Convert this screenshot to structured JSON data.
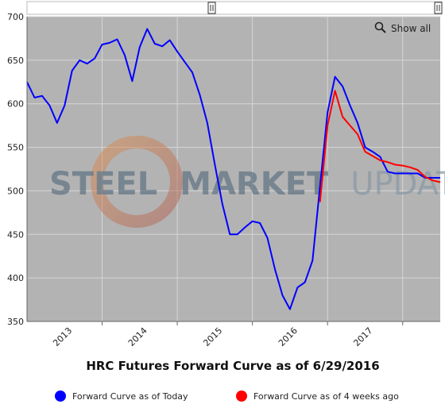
{
  "chart_data": {
    "type": "line",
    "title": "HRC Futures Forward Curve as of 6/29/2016",
    "watermark": {
      "word1": "STEEL",
      "word2": "MARKET",
      "word3": "UPDATE"
    },
    "show_all_label": "Show all",
    "ylim": [
      350,
      700
    ],
    "y_ticks": [
      350,
      400,
      450,
      500,
      550,
      600,
      650,
      700
    ],
    "x_range": [
      2012.0,
      2017.5
    ],
    "x_ticks": [
      {
        "label": "2013",
        "value": 2012.5
      },
      {
        "label": "2014",
        "value": 2013.5
      },
      {
        "label": "2015",
        "value": 2014.5
      },
      {
        "label": "2016",
        "value": 2015.5
      },
      {
        "label": "2017",
        "value": 2016.5
      }
    ],
    "year_boundaries": [
      2013,
      2014,
      2015,
      2016,
      2017
    ],
    "grid": true,
    "legend_position": "bottom",
    "series": [
      {
        "name": "Forward Curve as of Today",
        "color": "#0000ff",
        "points": [
          [
            2012.0,
            625
          ],
          [
            2012.1,
            607
          ],
          [
            2012.2,
            609
          ],
          [
            2012.3,
            598
          ],
          [
            2012.4,
            578
          ],
          [
            2012.5,
            598
          ],
          [
            2012.6,
            638
          ],
          [
            2012.7,
            650
          ],
          [
            2012.8,
            646
          ],
          [
            2012.9,
            652
          ],
          [
            2013.0,
            668
          ],
          [
            2013.1,
            670
          ],
          [
            2013.2,
            674
          ],
          [
            2013.3,
            656
          ],
          [
            2013.4,
            626
          ],
          [
            2013.5,
            665
          ],
          [
            2013.6,
            686
          ],
          [
            2013.7,
            669
          ],
          [
            2013.8,
            666
          ],
          [
            2013.9,
            673
          ],
          [
            2014.0,
            660
          ],
          [
            2014.1,
            648
          ],
          [
            2014.2,
            636
          ],
          [
            2014.3,
            610
          ],
          [
            2014.4,
            578
          ],
          [
            2014.5,
            530
          ],
          [
            2014.6,
            485
          ],
          [
            2014.7,
            450
          ],
          [
            2014.8,
            450
          ],
          [
            2014.9,
            458
          ],
          [
            2015.0,
            465
          ],
          [
            2015.1,
            463
          ],
          [
            2015.2,
            446
          ],
          [
            2015.3,
            410
          ],
          [
            2015.4,
            380
          ],
          [
            2015.5,
            364
          ],
          [
            2015.6,
            389
          ],
          [
            2015.7,
            395
          ],
          [
            2015.8,
            420
          ],
          [
            2015.9,
            505
          ],
          [
            2016.0,
            590
          ],
          [
            2016.1,
            631
          ],
          [
            2016.2,
            620
          ],
          [
            2016.3,
            598
          ],
          [
            2016.4,
            578
          ],
          [
            2016.5,
            550
          ],
          [
            2016.6,
            545
          ],
          [
            2016.7,
            539
          ],
          [
            2016.8,
            522
          ],
          [
            2016.9,
            520
          ],
          [
            2017.0,
            520
          ],
          [
            2017.1,
            520
          ],
          [
            2017.2,
            520
          ],
          [
            2017.3,
            515
          ],
          [
            2017.4,
            515
          ],
          [
            2017.5,
            515
          ]
        ]
      },
      {
        "name": "Forward Curve as of 4 weeks ago",
        "color": "#ff0000",
        "points": [
          [
            2015.9,
            487
          ],
          [
            2016.0,
            575
          ],
          [
            2016.1,
            615
          ],
          [
            2016.2,
            585
          ],
          [
            2016.3,
            575
          ],
          [
            2016.4,
            565
          ],
          [
            2016.5,
            545
          ],
          [
            2016.6,
            540
          ],
          [
            2016.7,
            535
          ],
          [
            2016.8,
            533
          ],
          [
            2016.9,
            530
          ],
          [
            2017.0,
            529
          ],
          [
            2017.1,
            527
          ],
          [
            2017.2,
            524
          ],
          [
            2017.3,
            516
          ],
          [
            2017.4,
            512
          ],
          [
            2017.5,
            510
          ]
        ]
      }
    ]
  }
}
